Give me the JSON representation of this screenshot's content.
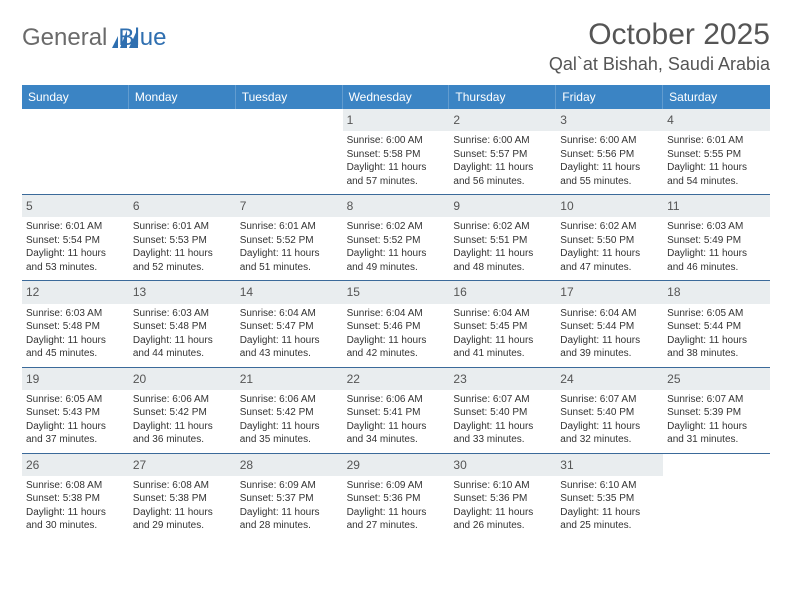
{
  "logo": {
    "word1": "General",
    "word2": "Blue"
  },
  "title": {
    "month": "October 2025",
    "location": "Qal`at Bishah, Saudi Arabia"
  },
  "colors": {
    "header_bg": "#3b84c4",
    "header_text": "#ffffff",
    "daynum_bg": "#e9edef",
    "week_border": "#3b6a9a",
    "logo_gray": "#6a6a6a",
    "logo_blue": "#2f6fb0"
  },
  "day_headers": [
    "Sunday",
    "Monday",
    "Tuesday",
    "Wednesday",
    "Thursday",
    "Friday",
    "Saturday"
  ],
  "weeks": [
    [
      {
        "day": "",
        "empty": true
      },
      {
        "day": "",
        "empty": true
      },
      {
        "day": "",
        "empty": true
      },
      {
        "day": "1",
        "sunrise": "Sunrise: 6:00 AM",
        "sunset": "Sunset: 5:58 PM",
        "daylight": "Daylight: 11 hours and 57 minutes."
      },
      {
        "day": "2",
        "sunrise": "Sunrise: 6:00 AM",
        "sunset": "Sunset: 5:57 PM",
        "daylight": "Daylight: 11 hours and 56 minutes."
      },
      {
        "day": "3",
        "sunrise": "Sunrise: 6:00 AM",
        "sunset": "Sunset: 5:56 PM",
        "daylight": "Daylight: 11 hours and 55 minutes."
      },
      {
        "day": "4",
        "sunrise": "Sunrise: 6:01 AM",
        "sunset": "Sunset: 5:55 PM",
        "daylight": "Daylight: 11 hours and 54 minutes."
      }
    ],
    [
      {
        "day": "5",
        "sunrise": "Sunrise: 6:01 AM",
        "sunset": "Sunset: 5:54 PM",
        "daylight": "Daylight: 11 hours and 53 minutes."
      },
      {
        "day": "6",
        "sunrise": "Sunrise: 6:01 AM",
        "sunset": "Sunset: 5:53 PM",
        "daylight": "Daylight: 11 hours and 52 minutes."
      },
      {
        "day": "7",
        "sunrise": "Sunrise: 6:01 AM",
        "sunset": "Sunset: 5:52 PM",
        "daylight": "Daylight: 11 hours and 51 minutes."
      },
      {
        "day": "8",
        "sunrise": "Sunrise: 6:02 AM",
        "sunset": "Sunset: 5:52 PM",
        "daylight": "Daylight: 11 hours and 49 minutes."
      },
      {
        "day": "9",
        "sunrise": "Sunrise: 6:02 AM",
        "sunset": "Sunset: 5:51 PM",
        "daylight": "Daylight: 11 hours and 48 minutes."
      },
      {
        "day": "10",
        "sunrise": "Sunrise: 6:02 AM",
        "sunset": "Sunset: 5:50 PM",
        "daylight": "Daylight: 11 hours and 47 minutes."
      },
      {
        "day": "11",
        "sunrise": "Sunrise: 6:03 AM",
        "sunset": "Sunset: 5:49 PM",
        "daylight": "Daylight: 11 hours and 46 minutes."
      }
    ],
    [
      {
        "day": "12",
        "sunrise": "Sunrise: 6:03 AM",
        "sunset": "Sunset: 5:48 PM",
        "daylight": "Daylight: 11 hours and 45 minutes."
      },
      {
        "day": "13",
        "sunrise": "Sunrise: 6:03 AM",
        "sunset": "Sunset: 5:48 PM",
        "daylight": "Daylight: 11 hours and 44 minutes."
      },
      {
        "day": "14",
        "sunrise": "Sunrise: 6:04 AM",
        "sunset": "Sunset: 5:47 PM",
        "daylight": "Daylight: 11 hours and 43 minutes."
      },
      {
        "day": "15",
        "sunrise": "Sunrise: 6:04 AM",
        "sunset": "Sunset: 5:46 PM",
        "daylight": "Daylight: 11 hours and 42 minutes."
      },
      {
        "day": "16",
        "sunrise": "Sunrise: 6:04 AM",
        "sunset": "Sunset: 5:45 PM",
        "daylight": "Daylight: 11 hours and 41 minutes."
      },
      {
        "day": "17",
        "sunrise": "Sunrise: 6:04 AM",
        "sunset": "Sunset: 5:44 PM",
        "daylight": "Daylight: 11 hours and 39 minutes."
      },
      {
        "day": "18",
        "sunrise": "Sunrise: 6:05 AM",
        "sunset": "Sunset: 5:44 PM",
        "daylight": "Daylight: 11 hours and 38 minutes."
      }
    ],
    [
      {
        "day": "19",
        "sunrise": "Sunrise: 6:05 AM",
        "sunset": "Sunset: 5:43 PM",
        "daylight": "Daylight: 11 hours and 37 minutes."
      },
      {
        "day": "20",
        "sunrise": "Sunrise: 6:06 AM",
        "sunset": "Sunset: 5:42 PM",
        "daylight": "Daylight: 11 hours and 36 minutes."
      },
      {
        "day": "21",
        "sunrise": "Sunrise: 6:06 AM",
        "sunset": "Sunset: 5:42 PM",
        "daylight": "Daylight: 11 hours and 35 minutes."
      },
      {
        "day": "22",
        "sunrise": "Sunrise: 6:06 AM",
        "sunset": "Sunset: 5:41 PM",
        "daylight": "Daylight: 11 hours and 34 minutes."
      },
      {
        "day": "23",
        "sunrise": "Sunrise: 6:07 AM",
        "sunset": "Sunset: 5:40 PM",
        "daylight": "Daylight: 11 hours and 33 minutes."
      },
      {
        "day": "24",
        "sunrise": "Sunrise: 6:07 AM",
        "sunset": "Sunset: 5:40 PM",
        "daylight": "Daylight: 11 hours and 32 minutes."
      },
      {
        "day": "25",
        "sunrise": "Sunrise: 6:07 AM",
        "sunset": "Sunset: 5:39 PM",
        "daylight": "Daylight: 11 hours and 31 minutes."
      }
    ],
    [
      {
        "day": "26",
        "sunrise": "Sunrise: 6:08 AM",
        "sunset": "Sunset: 5:38 PM",
        "daylight": "Daylight: 11 hours and 30 minutes."
      },
      {
        "day": "27",
        "sunrise": "Sunrise: 6:08 AM",
        "sunset": "Sunset: 5:38 PM",
        "daylight": "Daylight: 11 hours and 29 minutes."
      },
      {
        "day": "28",
        "sunrise": "Sunrise: 6:09 AM",
        "sunset": "Sunset: 5:37 PM",
        "daylight": "Daylight: 11 hours and 28 minutes."
      },
      {
        "day": "29",
        "sunrise": "Sunrise: 6:09 AM",
        "sunset": "Sunset: 5:36 PM",
        "daylight": "Daylight: 11 hours and 27 minutes."
      },
      {
        "day": "30",
        "sunrise": "Sunrise: 6:10 AM",
        "sunset": "Sunset: 5:36 PM",
        "daylight": "Daylight: 11 hours and 26 minutes."
      },
      {
        "day": "31",
        "sunrise": "Sunrise: 6:10 AM",
        "sunset": "Sunset: 5:35 PM",
        "daylight": "Daylight: 11 hours and 25 minutes."
      },
      {
        "day": "",
        "empty": true
      }
    ]
  ]
}
